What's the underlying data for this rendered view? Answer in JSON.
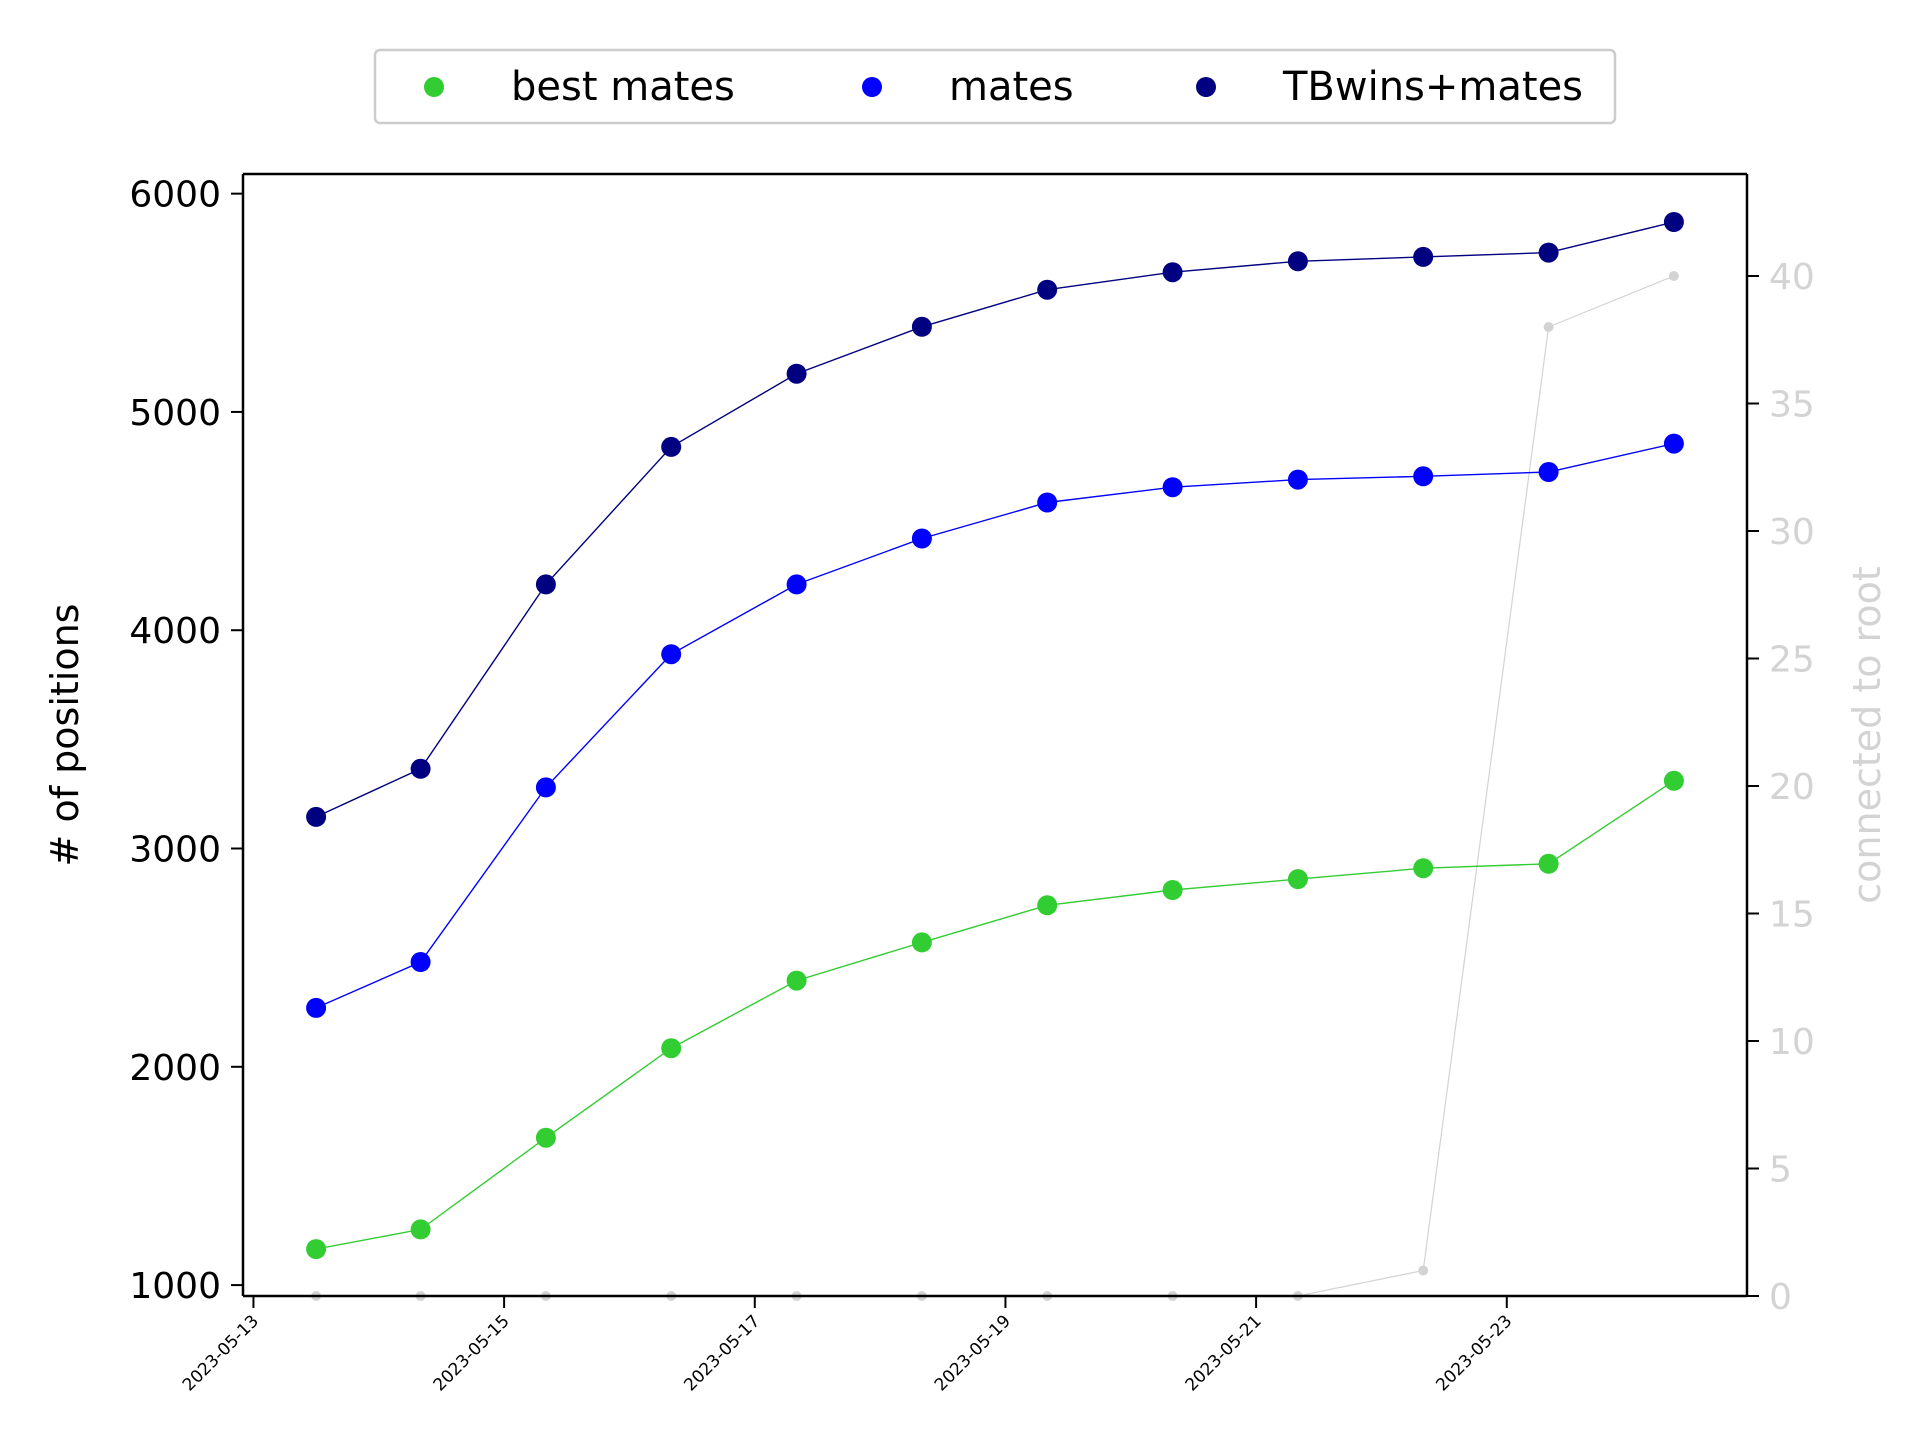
{
  "chart_data": {
    "type": "line",
    "x": [
      "2023-05-13T12",
      "2023-05-14T08",
      "2023-05-15T08",
      "2023-05-16T08",
      "2023-05-17T08",
      "2023-05-18T08",
      "2023-05-19T08",
      "2023-05-20T08",
      "2023-05-21T08",
      "2023-05-22T08",
      "2023-05-23T08",
      "2023-05-24T08"
    ],
    "xticks": [
      "2023-05-13",
      "2023-05-15",
      "2023-05-17",
      "2023-05-19",
      "2023-05-21",
      "2023-05-23"
    ],
    "series": [
      {
        "name": "best mates",
        "axis": "left",
        "color": "#32cd32",
        "marker": "large",
        "values": [
          1165,
          1255,
          1675,
          2085,
          2395,
          2570,
          2740,
          2810,
          2860,
          2910,
          2930,
          3310
        ]
      },
      {
        "name": "mates",
        "axis": "left",
        "color": "#0000ff",
        "marker": "large",
        "values": [
          2270,
          2480,
          3280,
          3890,
          4210,
          4420,
          4585,
          4655,
          4690,
          4705,
          4725,
          4855
        ]
      },
      {
        "name": "TBwins+mates",
        "axis": "left",
        "color": "#000080",
        "marker": "large",
        "values": [
          3145,
          3365,
          4210,
          4840,
          5175,
          5390,
          5560,
          5640,
          5690,
          5710,
          5730,
          5870
        ]
      },
      {
        "name": "",
        "axis": "right",
        "color": "#d3d3d3",
        "marker": "small",
        "values": [
          0,
          0,
          0,
          0,
          0,
          0,
          0,
          0,
          0,
          1,
          38,
          40
        ]
      }
    ],
    "y_left": {
      "label": "# of positions",
      "ylim": [
        950,
        6090
      ],
      "ticks": [
        1000,
        2000,
        3000,
        4000,
        5000,
        6000
      ]
    },
    "y_right": {
      "label": "connected to root",
      "ylim": [
        0,
        44
      ],
      "ticks": [
        0,
        5,
        10,
        15,
        20,
        25,
        30,
        35,
        40
      ]
    },
    "xlim": [
      "2023-05-12T22",
      "2023-05-24T22"
    ],
    "legend": {
      "placement": "top-center",
      "entries": [
        "best mates",
        "mates",
        "TBwins+mates"
      ]
    },
    "grid": false
  }
}
